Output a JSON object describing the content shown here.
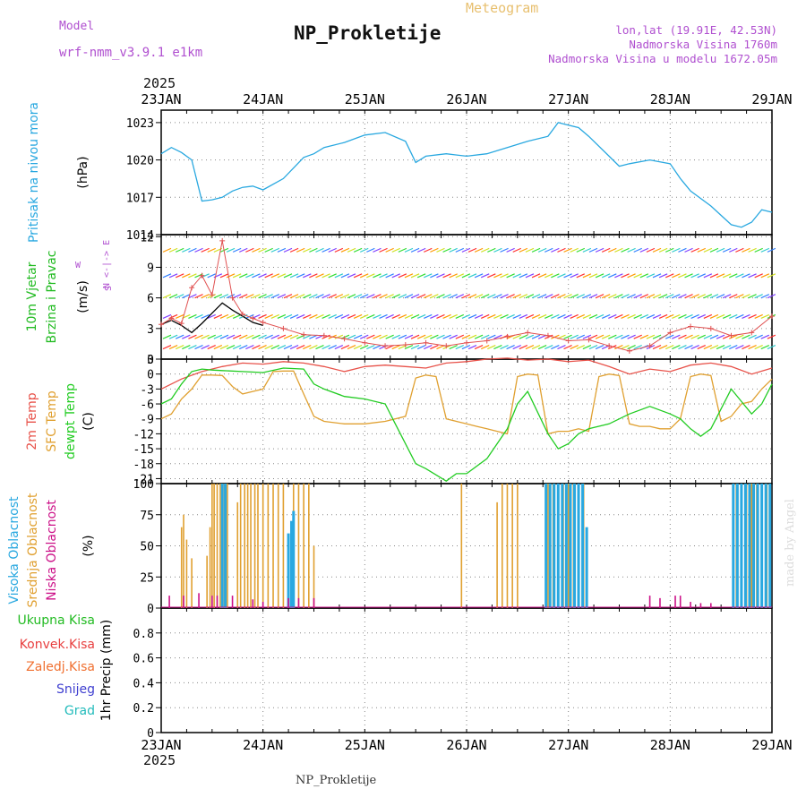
{
  "header": {
    "model_label": "Model",
    "model_name": "wrf-nmm_v3.9.1 e1km",
    "title": "NP_Prokletije",
    "subtitle": "Meteogram",
    "lonlat": "lon,lat (19.91E, 42.53N)",
    "elevation": "Nadmorska Visina 1760m",
    "model_elevation": "Nadmorska Visina u modelu 1672.05m",
    "year": "2025",
    "footer_title": "NP_Prokletije",
    "watermark": "made by Angel"
  },
  "colors": {
    "pressure": "#29a8e0",
    "wind_label": "#22bb22",
    "temp2m": "#e8524a",
    "sfc": "#e0a030",
    "dewpt": "#22cc22",
    "high_cloud": "#29a8e0",
    "mid_cloud": "#e0a030",
    "low_cloud": "#cc1188",
    "purple": "#b050d0",
    "orange_title": "#e8c070"
  },
  "chart_data": [
    {
      "id": "pressure",
      "type": "line",
      "ylabel": "(hPa)",
      "side_label": "Pritisak na nivou mora",
      "x_ticks": [
        "23JAN",
        "24JAN",
        "25JAN",
        "26JAN",
        "27JAN",
        "28JAN",
        "29JAN"
      ],
      "yticks": [
        1014,
        1017,
        1020,
        1023
      ],
      "ylim": [
        1014,
        1024
      ],
      "x": [
        0,
        0.1,
        0.2,
        0.3,
        0.4,
        0.5,
        0.6,
        0.7,
        0.8,
        0.9,
        1.0,
        1.2,
        1.4,
        1.5,
        1.6,
        1.8,
        2.0,
        2.2,
        2.4,
        2.5,
        2.6,
        2.8,
        3.0,
        3.2,
        3.4,
        3.6,
        3.8,
        3.9,
        4.0,
        4.1,
        4.2,
        4.4,
        4.5,
        4.6,
        4.8,
        5.0,
        5.1,
        5.2,
        5.4,
        5.6,
        5.7,
        5.8,
        5.9,
        6.0
      ],
      "values": [
        1020.5,
        1021,
        1020.6,
        1020,
        1016.7,
        1016.8,
        1017,
        1017.5,
        1017.8,
        1017.9,
        1017.6,
        1018.5,
        1020.2,
        1020.5,
        1021,
        1021.4,
        1022,
        1022.2,
        1021.5,
        1019.8,
        1020.3,
        1020.5,
        1020.3,
        1020.5,
        1021,
        1021.5,
        1021.9,
        1023,
        1022.8,
        1022.6,
        1021.9,
        1020.3,
        1019.5,
        1019.7,
        1020,
        1019.7,
        1018.5,
        1017.5,
        1016.3,
        1014.8,
        1014.6,
        1015,
        1016,
        1015.8
      ]
    },
    {
      "id": "wind",
      "type": "line",
      "ylabel": "(m/s)",
      "side_label_1": "10m Vjetar",
      "side_label_2": "Brzina i Pravac",
      "compass": "N <-|-> E",
      "compass_w": "W",
      "compass_s": "S",
      "yticks": [
        0,
        3,
        6,
        9,
        12
      ],
      "ylim": [
        0,
        12.2
      ],
      "barb_levels": [
        1,
        2,
        4,
        6,
        8,
        10.5
      ],
      "series": [
        {
          "name": "speed",
          "x": [
            0,
            0.1,
            0.2,
            0.3,
            0.4,
            0.5,
            0.6,
            0.7,
            0.8,
            0.9,
            1.0
          ],
          "values": [
            3.4,
            3.8,
            3.3,
            2.6,
            3.5,
            4.5,
            5.5,
            4.8,
            4.2,
            3.6,
            3.3
          ]
        },
        {
          "name": "gust",
          "x": [
            0,
            0.1,
            0.2,
            0.3,
            0.4,
            0.5,
            0.6,
            0.7,
            0.8,
            0.9,
            1.0,
            1.2,
            1.4,
            1.6,
            1.8,
            2.0,
            2.2,
            2.4,
            2.6,
            2.8,
            3.0,
            3.2,
            3.4,
            3.6,
            3.8,
            4.0,
            4.2,
            4.4,
            4.6,
            4.8,
            5.0,
            5.2,
            5.4,
            5.6,
            5.8,
            6.0
          ],
          "values": [
            3.4,
            4.0,
            3.5,
            7.0,
            8.2,
            6.3,
            11.6,
            6.0,
            4.4,
            4.0,
            3.6,
            3.0,
            2.4,
            2.3,
            2.0,
            1.6,
            1.3,
            1.4,
            1.6,
            1.3,
            1.6,
            1.8,
            2.2,
            2.6,
            2.3,
            1.8,
            1.9,
            1.3,
            0.8,
            1.3,
            2.6,
            3.2,
            3.0,
            2.3,
            2.6,
            4.2
          ]
        }
      ]
    },
    {
      "id": "temperature",
      "type": "line",
      "ylabel": "(C)",
      "side_label_1": "2m Temp",
      "side_label_2": "SFC Temp",
      "side_label_3": "dewpt Temp",
      "yticks": [
        -21,
        -18,
        -15,
        -12,
        -9,
        -6,
        -3,
        0,
        3
      ],
      "ylim": [
        -22,
        3
      ],
      "series": [
        {
          "name": "2m Temp",
          "x": [
            0,
            0.2,
            0.4,
            0.6,
            0.8,
            1.0,
            1.2,
            1.4,
            1.6,
            1.8,
            2.0,
            2.2,
            2.4,
            2.6,
            2.8,
            3.0,
            3.2,
            3.4,
            3.6,
            3.8,
            4.0,
            4.2,
            4.4,
            4.6,
            4.8,
            5.0,
            5.2,
            5.4,
            5.6,
            5.8,
            6.0
          ],
          "values": [
            -3,
            -1,
            0.5,
            1.5,
            2.2,
            2.0,
            2.5,
            2.2,
            1.5,
            0.5,
            1.5,
            1.8,
            1.5,
            1.2,
            2.2,
            2.5,
            3.0,
            3.2,
            2.8,
            3.0,
            2.5,
            2.8,
            1.5,
            0,
            1.0,
            0.5,
            1.8,
            2.2,
            1.5,
            0,
            1.2
          ]
        },
        {
          "name": "SFC Temp",
          "x": [
            0,
            0.1,
            0.2,
            0.3,
            0.4,
            0.5,
            0.6,
            0.7,
            0.8,
            0.9,
            1.0,
            1.1,
            1.2,
            1.3,
            1.4,
            1.5,
            1.6,
            1.8,
            2.0,
            2.2,
            2.4,
            2.5,
            2.6,
            2.7,
            2.8,
            2.9,
            3.0,
            3.1,
            3.2,
            3.3,
            3.4,
            3.5,
            3.6,
            3.7,
            3.8,
            3.9,
            4.0,
            4.1,
            4.2,
            4.3,
            4.4,
            4.5,
            4.6,
            4.7,
            4.8,
            4.9,
            5.0,
            5.1,
            5.2,
            5.3,
            5.4,
            5.5,
            5.6,
            5.7,
            5.8,
            5.9,
            6.0
          ],
          "values": [
            -9,
            -8,
            -5,
            -3,
            -0.2,
            -0.2,
            -0.3,
            -2.5,
            -4,
            -3.5,
            -3,
            0.5,
            0.6,
            0.6,
            -4,
            -8.5,
            -9.5,
            -10,
            -10,
            -9.5,
            -8.5,
            -0.8,
            -0.2,
            -0.5,
            -9,
            -9.5,
            -10,
            -10.5,
            -11,
            -11.5,
            -12,
            -0.5,
            0,
            -0.2,
            -12,
            -11.5,
            -11.5,
            -11,
            -11.5,
            -0.5,
            0,
            -0.3,
            -10,
            -10.5,
            -10.5,
            -11,
            -11,
            -9,
            -0.5,
            0,
            -0.3,
            -9.5,
            -8.5,
            -6,
            -5.5,
            -3,
            -1
          ]
        },
        {
          "name": "dewpt Temp",
          "x": [
            0,
            0.1,
            0.2,
            0.3,
            0.4,
            0.5,
            0.6,
            0.8,
            1.0,
            1.2,
            1.4,
            1.5,
            1.6,
            1.8,
            2.0,
            2.2,
            2.3,
            2.5,
            2.6,
            2.8,
            2.9,
            3.0,
            3.2,
            3.4,
            3.5,
            3.6,
            3.8,
            3.9,
            4.0,
            4.1,
            4.2,
            4.4,
            4.6,
            4.8,
            5.0,
            5.1,
            5.2,
            5.3,
            5.4,
            5.6,
            5.8,
            5.9,
            6.0
          ],
          "values": [
            -6,
            -5,
            -2,
            0.5,
            1.0,
            0.8,
            0.7,
            0.5,
            0.3,
            1.2,
            1.0,
            -2,
            -3,
            -4.5,
            -5,
            -6,
            -10,
            -18,
            -19,
            -21.5,
            -20,
            -20,
            -17,
            -11,
            -6,
            -3.5,
            -12,
            -15,
            -14,
            -12,
            -11,
            -10,
            -8,
            -6.5,
            -8,
            -9,
            -11,
            -12.5,
            -11,
            -3,
            -8,
            -6,
            -2
          ]
        }
      ]
    },
    {
      "id": "clouds",
      "type": "bar",
      "ylabel": "(%)",
      "side_label_1": "Visoka Oblacnost",
      "side_label_2": "Srednja Oblacnost",
      "side_label_3": "Niska Oblacnost",
      "yticks": [
        0,
        25,
        50,
        75,
        100
      ],
      "ylim": [
        0,
        100
      ],
      "series": [
        {
          "name": "Srednja Oblacnost",
          "x": [
            0.2,
            0.22,
            0.25,
            0.3,
            0.45,
            0.48,
            0.5,
            0.52,
            0.55,
            0.58,
            0.62,
            0.65,
            0.75,
            0.78,
            0.82,
            0.85,
            0.88,
            0.92,
            0.95,
            1.0,
            1.05,
            1.1,
            1.15,
            1.2,
            1.3,
            1.35,
            1.4,
            1.45,
            1.5,
            2.95,
            3.3,
            3.35,
            3.4,
            3.45,
            3.5,
            3.8,
            3.82,
            3.85,
            3.9,
            3.95,
            4.0,
            4.05,
            4.1,
            4.15,
            5.62,
            5.65,
            5.7,
            5.75,
            5.8,
            5.85,
            5.9,
            5.95
          ],
          "values": [
            65,
            75,
            55,
            40,
            42,
            65,
            100,
            100,
            100,
            100,
            100,
            100,
            85,
            100,
            100,
            100,
            100,
            100,
            100,
            100,
            100,
            100,
            100,
            100,
            100,
            100,
            100,
            100,
            50,
            100,
            85,
            100,
            100,
            100,
            100,
            100,
            40,
            100,
            100,
            100,
            100,
            100,
            100,
            100,
            100,
            100,
            100,
            100,
            100,
            100,
            100,
            100
          ]
        },
        {
          "name": "Visoka Oblacnost",
          "x": [
            0.6,
            0.63,
            1.25,
            1.28,
            1.3,
            3.78,
            3.82,
            3.86,
            3.9,
            3.94,
            3.98,
            4.02,
            4.06,
            4.1,
            4.14,
            4.18,
            5.62,
            5.66,
            5.7,
            5.74,
            5.78,
            5.82,
            5.86,
            5.9,
            5.94,
            5.98
          ],
          "values": [
            100,
            100,
            60,
            70,
            78,
            100,
            100,
            100,
            100,
            100,
            100,
            100,
            100,
            100,
            100,
            65,
            100,
            100,
            100,
            100,
            100,
            100,
            100,
            100,
            100,
            100
          ]
        },
        {
          "name": "Niska Oblacnost",
          "x": [
            0.08,
            0.22,
            0.37,
            0.5,
            0.55,
            0.7,
            0.9,
            1.0,
            1.25,
            1.35,
            1.5,
            4.8,
            4.9,
            5.05,
            5.1,
            5.2,
            5.3,
            5.4
          ],
          "values": [
            10,
            10,
            12,
            10,
            10,
            10,
            7,
            5,
            8,
            8,
            8,
            10,
            8,
            10,
            10,
            5,
            4,
            4
          ]
        }
      ]
    },
    {
      "id": "precip",
      "type": "bar",
      "ylabel": "1hr Precip (mm)",
      "side_labels": [
        "Ukupna Kisa",
        "Konvek.Kisa",
        "Zaledj.Kisa",
        "Snijeg",
        "Grad"
      ],
      "side_colors": [
        "#22bb22",
        "#e84040",
        "#f07030",
        "#4040d0",
        "#22bbbb"
      ],
      "yticks": [
        0,
        0.2,
        0.4,
        0.6,
        0.8
      ],
      "ylim": [
        0,
        1
      ],
      "values": []
    }
  ]
}
